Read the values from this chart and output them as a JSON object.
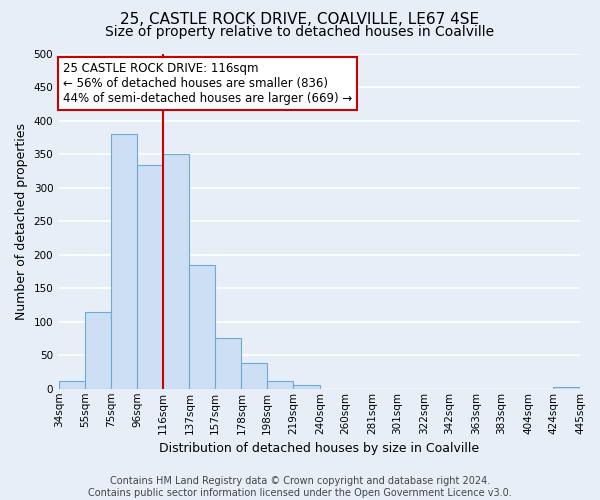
{
  "title": "25, CASTLE ROCK DRIVE, COALVILLE, LE67 4SE",
  "subtitle": "Size of property relative to detached houses in Coalville",
  "xlabel": "Distribution of detached houses by size in Coalville",
  "ylabel": "Number of detached properties",
  "bin_labels": [
    "34sqm",
    "55sqm",
    "75sqm",
    "96sqm",
    "116sqm",
    "137sqm",
    "157sqm",
    "178sqm",
    "198sqm",
    "219sqm",
    "240sqm",
    "260sqm",
    "281sqm",
    "301sqm",
    "322sqm",
    "342sqm",
    "363sqm",
    "383sqm",
    "404sqm",
    "424sqm",
    "445sqm"
  ],
  "bin_edges": [
    34,
    55,
    75,
    96,
    116,
    137,
    157,
    178,
    198,
    219,
    240,
    260,
    281,
    301,
    322,
    342,
    363,
    383,
    404,
    424,
    445
  ],
  "bar_heights": [
    12,
    115,
    380,
    334,
    350,
    185,
    76,
    39,
    12,
    5,
    0,
    0,
    0,
    0,
    0,
    0,
    0,
    0,
    0,
    2
  ],
  "bar_color": "#ccdff5",
  "bar_edge_color": "#6aaad4",
  "vline_x": 116,
  "vline_color": "#cc0000",
  "annotation_line1": "25 CASTLE ROCK DRIVE: 116sqm",
  "annotation_line2": "← 56% of detached houses are smaller (836)",
  "annotation_line3": "44% of semi-detached houses are larger (669) →",
  "annotation_box_color": "white",
  "annotation_box_edge_color": "#cc0000",
  "ylim": [
    0,
    500
  ],
  "yticks": [
    0,
    50,
    100,
    150,
    200,
    250,
    300,
    350,
    400,
    450,
    500
  ],
  "footer_text": "Contains HM Land Registry data © Crown copyright and database right 2024.\nContains public sector information licensed under the Open Government Licence v3.0.",
  "background_color": "#e8eef8",
  "plot_bg_color": "#e8eef8",
  "grid_color": "#ffffff",
  "title_fontsize": 11,
  "subtitle_fontsize": 10,
  "axis_label_fontsize": 9,
  "tick_fontsize": 7.5,
  "annotation_fontsize": 8.5,
  "footer_fontsize": 7
}
